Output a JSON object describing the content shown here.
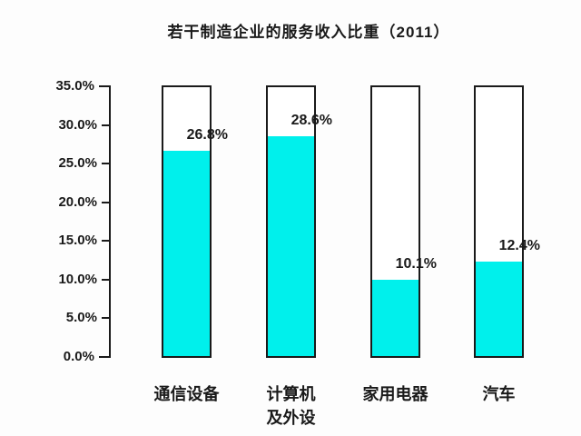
{
  "page": {
    "background": "#fdfdfd"
  },
  "colors": {
    "bar_fill": "#00f0ec",
    "bar_empty_fill": "#ffffff",
    "bar_outline": "#1a1a1a",
    "axis": "#1a1a1a",
    "text": "#1a1a1a"
  },
  "y_axis": {
    "tick_labels_top_to_bottom": [
      "35.0%",
      "30.0%",
      "25.0%",
      "20.0%",
      "15.0%",
      "10.0%",
      "5.0%",
      "0.0%"
    ],
    "min": 0,
    "max": 35,
    "step": 5
  },
  "chart_data": {
    "type": "bar",
    "title": "若干制造企业的服务收入比重（2011）",
    "categories": [
      "通信设备",
      "计算机及外设",
      "家用电器",
      "汽车"
    ],
    "category_lines": [
      [
        "通信设备"
      ],
      [
        "计算机",
        "及外设"
      ],
      [
        "家用电器"
      ],
      [
        "汽车"
      ]
    ],
    "values": [
      26.8,
      28.6,
      10.1,
      12.4
    ],
    "value_labels": [
      "26.8%",
      "28.6%",
      "10.1%",
      "12.4%"
    ],
    "xlabel": "",
    "ylabel": "",
    "ylim": [
      0,
      35
    ],
    "ytick_interval": 5,
    "grid": false,
    "legend": "none",
    "bar_style": "full-height outline with partial cyan fill from baseline"
  }
}
